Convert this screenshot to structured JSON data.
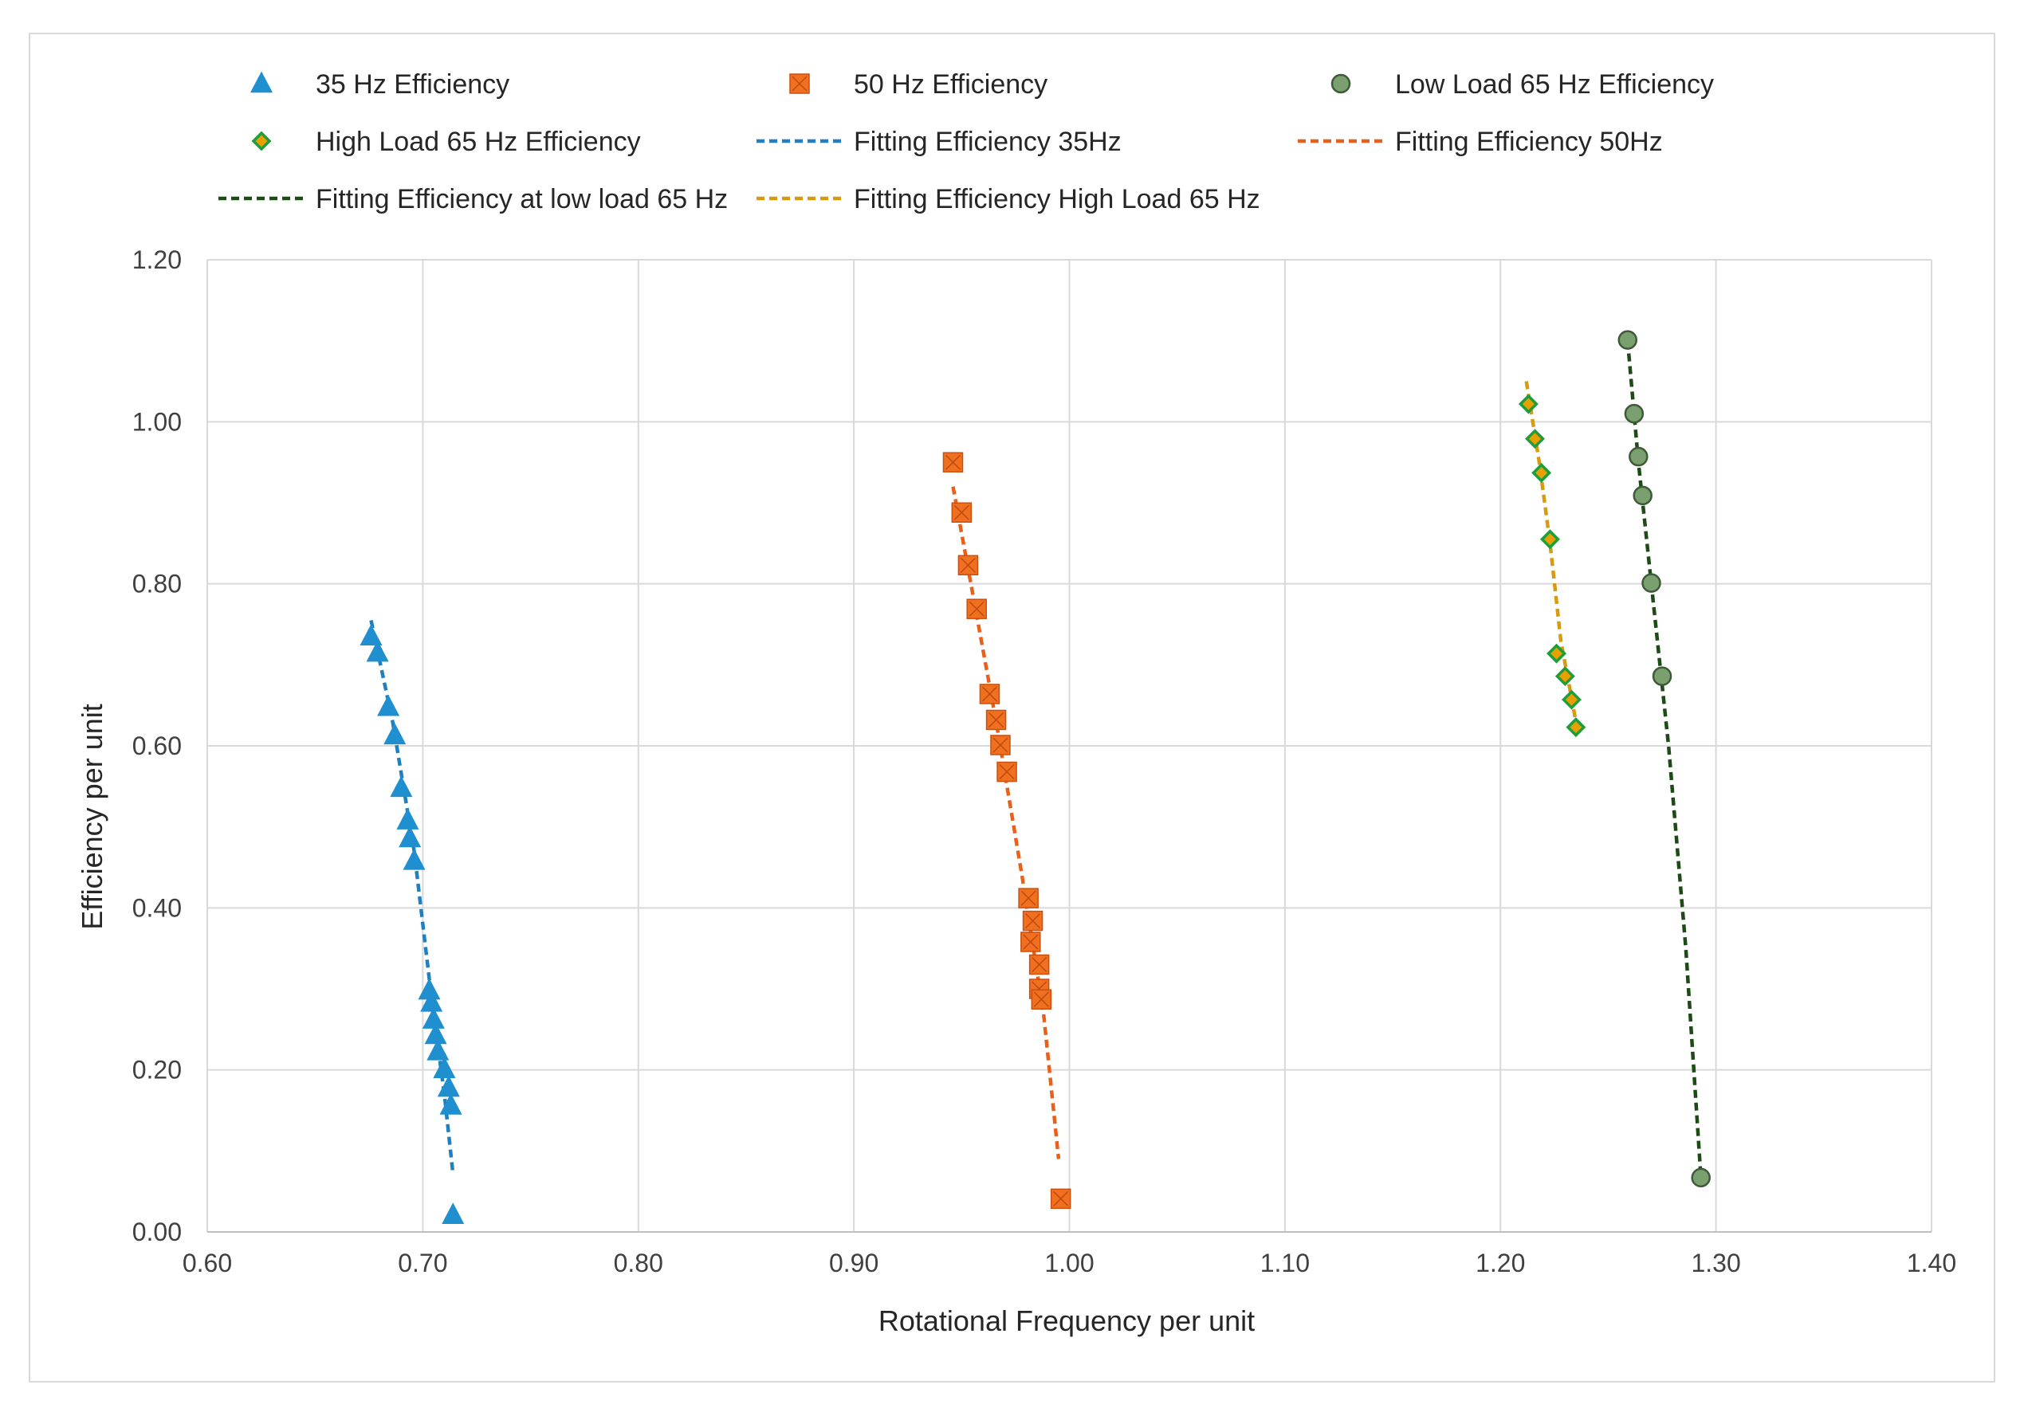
{
  "chart_data": {
    "type": "scatter",
    "title": "",
    "xlabel": "Rotational Frequency per unit",
    "ylabel": "Efficiency per unit",
    "xlim": [
      0.6,
      1.4
    ],
    "ylim": [
      0.0,
      1.2
    ],
    "x_ticks": [
      "0.60",
      "0.70",
      "0.80",
      "0.90",
      "1.00",
      "1.10",
      "1.20",
      "1.30",
      "1.40"
    ],
    "y_ticks": [
      "0.00",
      "0.20",
      "0.40",
      "0.60",
      "0.80",
      "1.00",
      "1.20"
    ],
    "grid": true,
    "legend_position": "top",
    "series": [
      {
        "name": "35 Hz Efficiency",
        "kind": "marker",
        "marker": "triangle",
        "color": "#1f8fd0",
        "x": [
          0.676,
          0.679,
          0.684,
          0.687,
          0.69,
          0.693,
          0.694,
          0.696,
          0.703,
          0.704,
          0.705,
          0.706,
          0.707,
          0.71,
          0.712,
          0.713,
          0.714
        ],
        "y": [
          0.735,
          0.715,
          0.648,
          0.613,
          0.548,
          0.508,
          0.486,
          0.458,
          0.298,
          0.283,
          0.262,
          0.243,
          0.223,
          0.201,
          0.178,
          0.156,
          0.021
        ]
      },
      {
        "name": "50 Hz Efficiency",
        "kind": "marker",
        "marker": "square-x",
        "color": "#f07020",
        "x": [
          0.946,
          0.95,
          0.953,
          0.957,
          0.963,
          0.966,
          0.968,
          0.971,
          0.981,
          0.983,
          0.982,
          0.986,
          0.986,
          0.987,
          0.996
        ],
        "y": [
          0.95,
          0.888,
          0.823,
          0.769,
          0.664,
          0.632,
          0.601,
          0.568,
          0.412,
          0.384,
          0.358,
          0.33,
          0.3,
          0.287,
          0.041
        ]
      },
      {
        "name": "Low Load 65 Hz Efficiency",
        "kind": "marker",
        "marker": "circle",
        "color": "#7aa070",
        "x": [
          1.259,
          1.262,
          1.264,
          1.266,
          1.27,
          1.275,
          1.293
        ],
        "y": [
          1.101,
          1.01,
          0.957,
          0.909,
          0.801,
          0.686,
          0.067
        ]
      },
      {
        "name": "High Load 65 Hz Efficiency",
        "kind": "marker",
        "marker": "diamond",
        "color": "#1e9e3a",
        "fill": "#e6a000",
        "x": [
          1.213,
          1.216,
          1.219,
          1.223,
          1.226,
          1.23,
          1.233,
          1.235
        ],
        "y": [
          1.022,
          0.979,
          0.937,
          0.855,
          0.714,
          0.686,
          0.657,
          0.623
        ]
      },
      {
        "name": "Fitting Efficiency 35Hz",
        "kind": "line",
        "color": "#1f7fc0",
        "x": [
          0.676,
          0.686,
          0.696,
          0.704,
          0.71,
          0.714
        ],
        "y": [
          0.755,
          0.63,
          0.47,
          0.29,
          0.17,
          0.072
        ]
      },
      {
        "name": "Fitting Efficiency 50Hz",
        "kind": "line",
        "color": "#e8601a",
        "x": [
          0.946,
          0.955,
          0.966,
          0.978,
          0.988,
          0.995
        ],
        "y": [
          0.92,
          0.79,
          0.63,
          0.44,
          0.27,
          0.09
        ]
      },
      {
        "name": "Fitting Efficiency at low load 65 Hz",
        "kind": "line",
        "color": "#1d4a16",
        "x": [
          1.259,
          1.264,
          1.27,
          1.278,
          1.286,
          1.293
        ],
        "y": [
          1.1,
          0.95,
          0.8,
          0.6,
          0.35,
          0.067
        ]
      },
      {
        "name": "Fitting Efficiency High Load 65 Hz",
        "kind": "line",
        "color": "#d89a10",
        "x": [
          1.212,
          1.218,
          1.223,
          1.228,
          1.235
        ],
        "y": [
          1.05,
          0.95,
          0.85,
          0.73,
          0.63
        ]
      }
    ]
  }
}
